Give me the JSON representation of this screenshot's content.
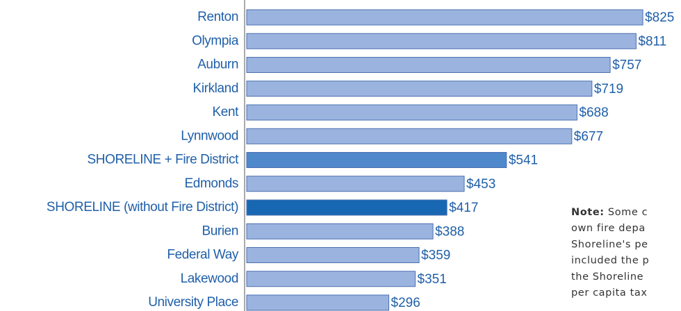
{
  "chart_data": {
    "type": "barh",
    "categories": [
      "Renton",
      "Olympia",
      "Auburn",
      "Kirkland",
      "Kent",
      "Lynnwood",
      "SHORELINE + Fire District",
      "Edmonds",
      "SHORELINE (without Fire District)",
      "Burien",
      "Federal Way",
      "Lakewood",
      "University Place"
    ],
    "values": [
      825,
      811,
      757,
      719,
      688,
      677,
      541,
      453,
      417,
      388,
      359,
      351,
      296
    ],
    "value_labels": [
      "$825",
      "$811",
      "$757",
      "$719",
      "$688",
      "$677",
      "$541",
      "$453",
      "$417",
      "$388",
      "$359",
      "$351",
      "$296"
    ],
    "colors": [
      "#9bb4df",
      "#9bb4df",
      "#9bb4df",
      "#9bb4df",
      "#9bb4df",
      "#9bb4df",
      "#4f88cb",
      "#9bb4df",
      "#1767b3",
      "#9bb4df",
      "#9bb4df",
      "#9bb4df",
      "#9bb4df"
    ],
    "note": {
      "label": "Note:",
      "lines": [
        "Some c",
        "own fire depa",
        "Shoreline's pe",
        "included the p",
        "the Shoreline",
        "per capita tax"
      ]
    }
  }
}
